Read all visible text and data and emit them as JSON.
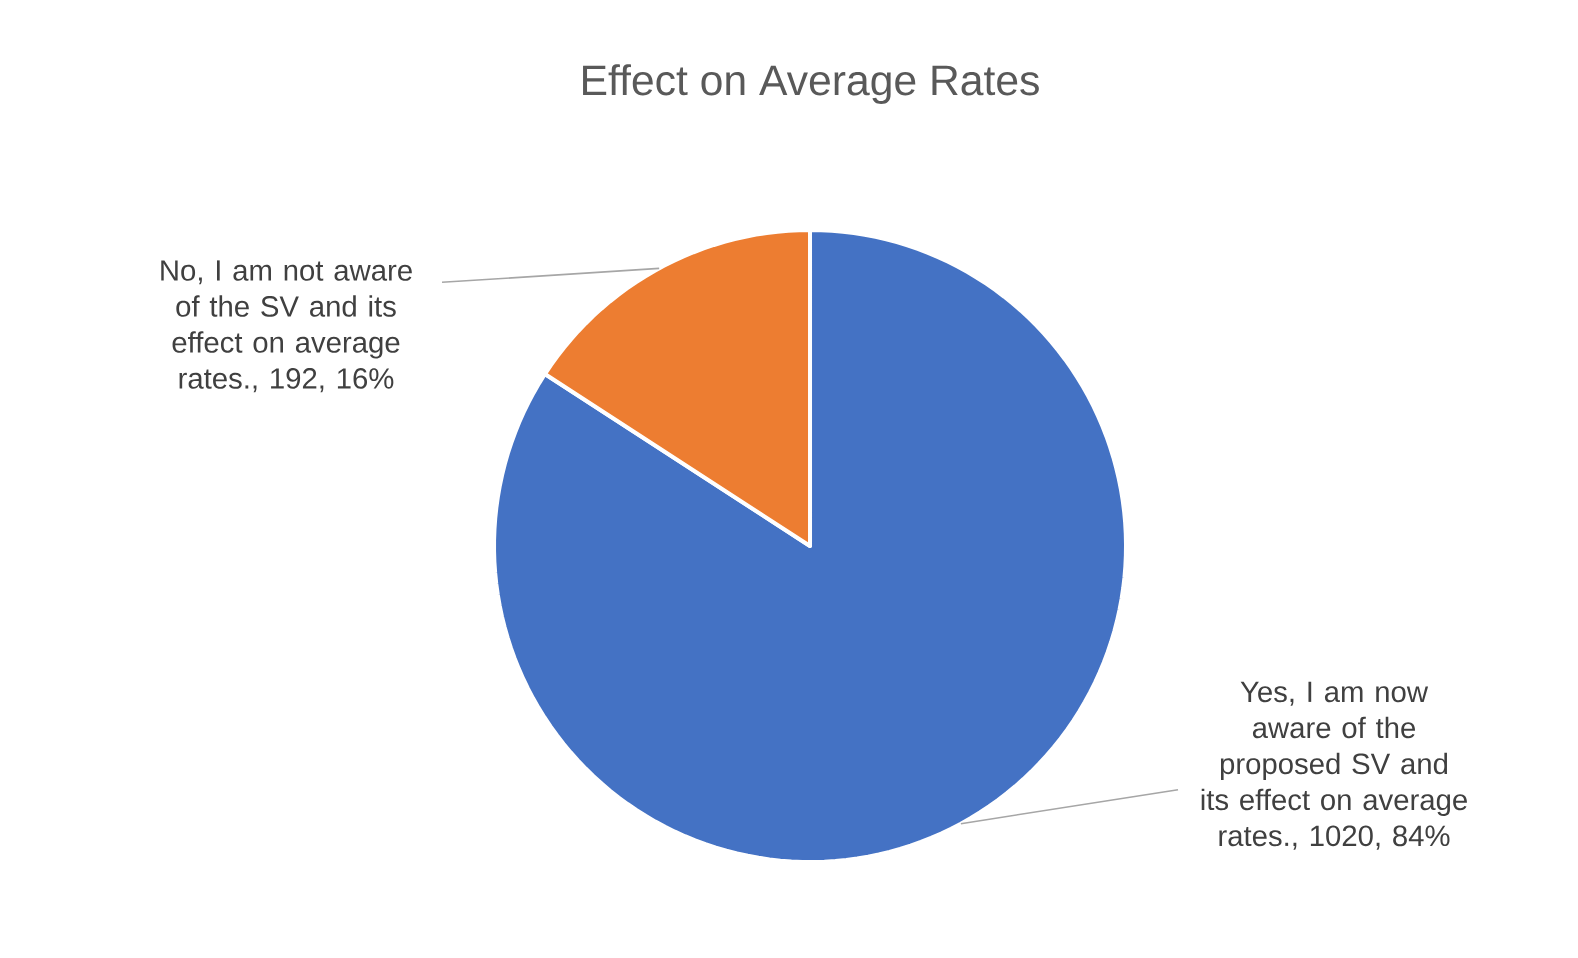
{
  "chart_data": {
    "type": "pie",
    "title": "Effect on Average Rates",
    "categories": [
      "Yes, I am now aware of the proposed SV and its effect on average rates., 1020, 84%",
      "No, I am not aware of the SV and its effect on average rates., 192, 16%"
    ],
    "values": [
      1020,
      192
    ],
    "colors": [
      "#4472c4",
      "#ed7d31"
    ]
  }
}
